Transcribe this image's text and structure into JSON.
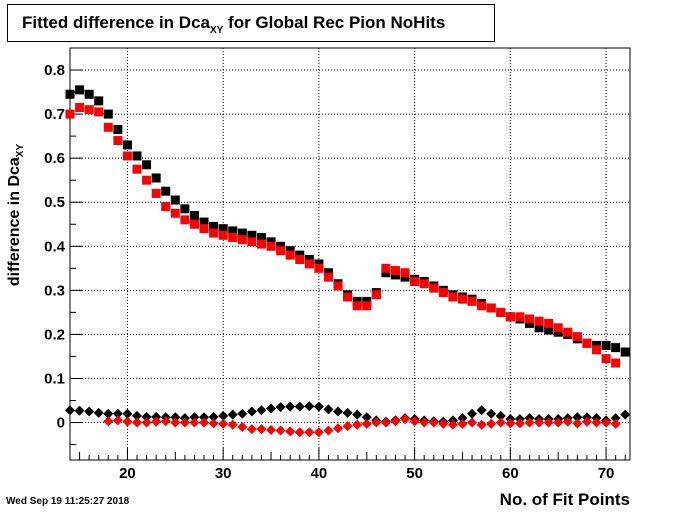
{
  "title": {
    "main": "Fitted difference in Dca",
    "sub": "XY",
    "rest": " for Global Rec Pion NoHits"
  },
  "ylabel": {
    "main": "difference in Dca",
    "sub": "XY"
  },
  "xlabel": "No. of Fit Points",
  "footer": "Wed Sep 19 11:25:27 2018",
  "chart_data": {
    "type": "scatter",
    "xlim": [
      14,
      72.5
    ],
    "ylim": [
      -0.085,
      0.85
    ],
    "x_ticks": [
      20,
      30,
      40,
      50,
      60,
      70
    ],
    "y_ticks": [
      0,
      0.1,
      0.2,
      0.3,
      0.4,
      0.5,
      0.6,
      0.7,
      0.8
    ],
    "y_tick_labels": [
      "0",
      "0.1",
      "0.2",
      "0.3",
      "0.4",
      "0.5",
      "0.6",
      "0.7",
      "0.8"
    ],
    "grid": true,
    "series": [
      {
        "color": "#000000",
        "marker": "square",
        "x": [
          14,
          15,
          16,
          17,
          18,
          19,
          20,
          21,
          22,
          23,
          24,
          25,
          26,
          27,
          28,
          29,
          30,
          31,
          32,
          33,
          34,
          35,
          36,
          37,
          38,
          39,
          40,
          41,
          42,
          43,
          44,
          45,
          46,
          47,
          48,
          49,
          50,
          51,
          52,
          53,
          54,
          55,
          56,
          57,
          58,
          59,
          60,
          61,
          62,
          63,
          64,
          65,
          66,
          67,
          68,
          69,
          70,
          71,
          72
        ],
        "y": [
          0.745,
          0.755,
          0.745,
          0.73,
          0.7,
          0.665,
          0.63,
          0.605,
          0.585,
          0.555,
          0.525,
          0.505,
          0.485,
          0.47,
          0.455,
          0.445,
          0.44,
          0.435,
          0.43,
          0.425,
          0.42,
          0.41,
          0.4,
          0.39,
          0.38,
          0.37,
          0.36,
          0.34,
          0.315,
          0.29,
          0.275,
          0.275,
          0.295,
          0.34,
          0.335,
          0.33,
          0.325,
          0.32,
          0.31,
          0.3,
          0.29,
          0.285,
          0.28,
          0.27,
          0.26,
          0.25,
          0.24,
          0.235,
          0.225,
          0.215,
          0.21,
          0.205,
          0.2,
          0.19,
          0.18,
          0.175,
          0.175,
          0.17,
          0.16
        ]
      },
      {
        "color": "#ff0000",
        "marker": "square",
        "x": [
          14,
          15,
          16,
          17,
          18,
          19,
          20,
          21,
          22,
          23,
          24,
          25,
          26,
          27,
          28,
          29,
          30,
          31,
          32,
          33,
          34,
          35,
          36,
          37,
          38,
          39,
          40,
          41,
          42,
          43,
          44,
          45,
          46,
          47,
          48,
          49,
          50,
          51,
          52,
          53,
          54,
          55,
          56,
          57,
          58,
          59,
          60,
          61,
          62,
          63,
          64,
          65,
          66,
          67,
          68,
          69,
          70,
          71
        ],
        "y": [
          0.7,
          0.715,
          0.71,
          0.705,
          0.67,
          0.64,
          0.605,
          0.575,
          0.55,
          0.52,
          0.49,
          0.475,
          0.46,
          0.45,
          0.44,
          0.43,
          0.425,
          0.42,
          0.415,
          0.41,
          0.405,
          0.4,
          0.39,
          0.38,
          0.37,
          0.36,
          0.35,
          0.33,
          0.31,
          0.285,
          0.265,
          0.265,
          0.29,
          0.35,
          0.345,
          0.34,
          0.32,
          0.315,
          0.305,
          0.295,
          0.285,
          0.28,
          0.275,
          0.265,
          0.26,
          0.25,
          0.24,
          0.24,
          0.235,
          0.23,
          0.225,
          0.215,
          0.205,
          0.195,
          0.18,
          0.165,
          0.145,
          0.135
        ]
      },
      {
        "color": "#000000",
        "marker": "diamond",
        "x": [
          14,
          15,
          16,
          17,
          18,
          19,
          20,
          21,
          22,
          23,
          24,
          25,
          26,
          27,
          28,
          29,
          30,
          31,
          32,
          33,
          34,
          35,
          36,
          37,
          38,
          39,
          40,
          41,
          42,
          43,
          44,
          45,
          46,
          47,
          48,
          49,
          50,
          51,
          52,
          53,
          54,
          55,
          56,
          57,
          58,
          59,
          60,
          61,
          62,
          63,
          64,
          65,
          66,
          67,
          68,
          69,
          70,
          71,
          72
        ],
        "y": [
          0.028,
          0.027,
          0.025,
          0.022,
          0.02,
          0.02,
          0.02,
          0.015,
          0.013,
          0.013,
          0.012,
          0.012,
          0.01,
          0.012,
          0.012,
          0.013,
          0.015,
          0.018,
          0.02,
          0.025,
          0.028,
          0.032,
          0.035,
          0.036,
          0.036,
          0.037,
          0.036,
          0.03,
          0.025,
          0.022,
          0.018,
          0.012,
          0.005,
          0.002,
          0.005,
          0.01,
          0.008,
          0.005,
          0.003,
          0.002,
          0.005,
          0.01,
          0.02,
          0.028,
          0.02,
          0.015,
          0.008,
          0.008,
          0.01,
          0.008,
          0.008,
          0.008,
          0.01,
          0.012,
          0.012,
          0.01,
          0.005,
          0.01,
          0.018
        ]
      },
      {
        "color": "#ff0000",
        "marker": "diamond",
        "x": [
          18,
          19,
          20,
          21,
          22,
          23,
          24,
          25,
          26,
          27,
          28,
          29,
          30,
          31,
          32,
          33,
          34,
          35,
          36,
          37,
          38,
          39,
          40,
          41,
          42,
          43,
          44,
          45,
          46,
          47,
          48,
          49,
          50,
          51,
          52,
          53,
          54,
          55,
          56,
          57,
          58,
          59,
          60,
          61,
          62,
          63,
          64,
          65,
          66,
          67,
          68,
          69,
          70,
          71
        ],
        "y": [
          0.003,
          0.005,
          0.002,
          0.0,
          0.0,
          0.002,
          0.003,
          0.0,
          0.0,
          0.0,
          0.0,
          -0.002,
          -0.003,
          -0.005,
          -0.01,
          -0.015,
          -0.015,
          -0.017,
          -0.018,
          -0.02,
          -0.022,
          -0.022,
          -0.022,
          -0.018,
          -0.013,
          -0.008,
          -0.005,
          -0.003,
          0.0,
          0.0,
          0.003,
          0.008,
          0.003,
          0.0,
          0.0,
          -0.003,
          -0.005,
          -0.003,
          0.0,
          -0.005,
          -0.003,
          0.0,
          -0.002,
          -0.002,
          0.0,
          0.0,
          0.0,
          0.0,
          0.002,
          -0.002,
          0.002,
          0.0,
          0.0,
          -0.003
        ]
      }
    ]
  }
}
